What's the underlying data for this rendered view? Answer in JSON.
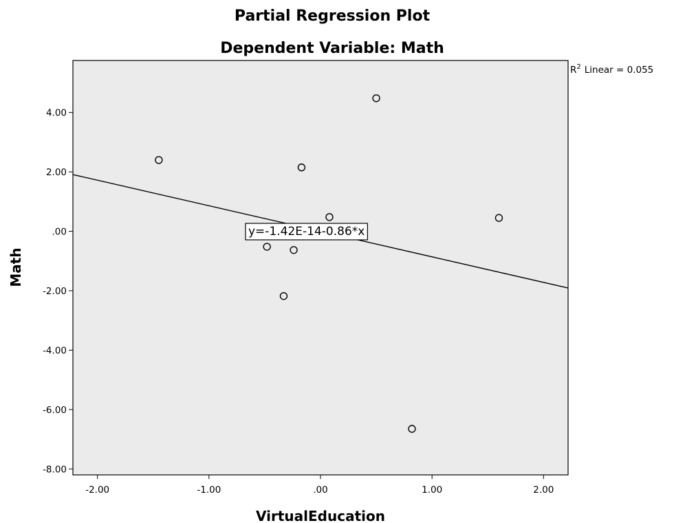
{
  "chart_data": {
    "type": "scatter",
    "title": "Partial Regression Plot",
    "subtitle": "Dependent Variable: Math",
    "xlabel": "VirtualEducation",
    "ylabel": "Math",
    "xlim": [
      -2.22,
      2.22
    ],
    "ylim": [
      -8.2,
      5.75
    ],
    "x_ticks": [
      -2,
      -1,
      0,
      1,
      2
    ],
    "x_tick_labels": [
      "-2.00",
      "-1.00",
      ".00",
      "1.00",
      "2.00"
    ],
    "y_ticks": [
      4,
      2,
      0,
      -2,
      -4,
      -6,
      -8
    ],
    "y_tick_labels": [
      "4.00",
      "2.00",
      ".00",
      "-2.00",
      "-4.00",
      "-6.00",
      "-8.00"
    ],
    "points": [
      {
        "x": -1.45,
        "y": 2.4
      },
      {
        "x": 0.5,
        "y": 4.48
      },
      {
        "x": -0.17,
        "y": 2.15
      },
      {
        "x": 0.08,
        "y": 0.48
      },
      {
        "x": 1.6,
        "y": 0.45
      },
      {
        "x": -0.48,
        "y": -0.52
      },
      {
        "x": -0.24,
        "y": -0.63
      },
      {
        "x": -0.33,
        "y": -2.18
      },
      {
        "x": 0.82,
        "y": -6.65
      }
    ],
    "fit_line": {
      "intercept": -1.42e-14,
      "slope": -0.86
    },
    "fit_equation": "y=-1.42E-14-0.86*x",
    "r2_label": "Linear = 0.055",
    "r2_prefix": "R",
    "r2_sup": "2",
    "grid": false,
    "legend": "none",
    "colors": {
      "plot_background": "#ebebeb",
      "frame": "#000000",
      "marker": "#000000",
      "fit_line": "#000000"
    }
  }
}
